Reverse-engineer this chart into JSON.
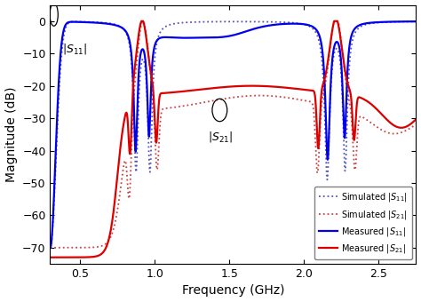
{
  "xlabel": "Frequency (GHz)",
  "ylabel": "Magnitude (dB)",
  "xlim": [
    0.3,
    2.75
  ],
  "ylim": [
    -75,
    5
  ],
  "yticks": [
    0,
    -10,
    -20,
    -30,
    -40,
    -50,
    -60,
    -70
  ],
  "xticks": [
    0.5,
    1.0,
    1.5,
    2.0,
    2.5
  ],
  "legend_entries": [
    "Simulated $|S_{11}|$",
    "Simulated $|S_{21}|$",
    "Measured $|S_{11}|$",
    "Measured $|S_{21}|$"
  ],
  "colors": {
    "sim_s11": "#5555bb",
    "sim_s21": "#cc4444",
    "meas_s11": "#0000ee",
    "meas_s21": "#dd0000"
  },
  "figsize": [
    4.74,
    3.4
  ],
  "dpi": 100
}
